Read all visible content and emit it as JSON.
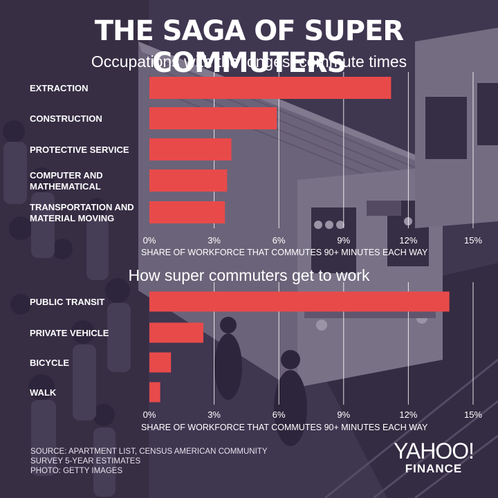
{
  "header": {
    "title": "THE SAGA OF SUPER COMMUTERS"
  },
  "colors": {
    "bar": "#e84a4a",
    "text": "#ffffff",
    "gridline": "#ffffff"
  },
  "chart_data": [
    {
      "type": "bar",
      "orientation": "horizontal",
      "title": "Occupations with the longest commute times",
      "categories": [
        "EXTRACTION",
        "CONSTRUCTION",
        "PROTECTIVE SERVICE",
        "COMPUTER AND MATHEMATICAL",
        "TRANSPORTATION AND MATERIAL MOVING"
      ],
      "category_lines": [
        [
          "EXTRACTION"
        ],
        [
          "CONSTRUCTION"
        ],
        [
          "PROTECTIVE SERVICE"
        ],
        [
          "COMPUTER AND",
          "MATHEMATICAL"
        ],
        [
          "TRANSPORTATION AND",
          "MATERIAL MOVING"
        ]
      ],
      "values": [
        11.2,
        5.9,
        3.8,
        3.6,
        3.5
      ],
      "xlabel": "SHARE OF WORKFORCE THAT COMMUTES 90+ MINUTES EACH WAY",
      "xlim": [
        0,
        15
      ],
      "ticks": [
        0,
        3,
        6,
        9,
        12,
        15
      ],
      "tick_labels": [
        "0%",
        "3%",
        "6%",
        "9%",
        "12%",
        "15%"
      ],
      "grid": true
    },
    {
      "type": "bar",
      "orientation": "horizontal",
      "title": "How super commuters get to work",
      "categories": [
        "PUBLIC TRANSIT",
        "PRIVATE VEHICLE",
        "BICYCLE",
        "WALK"
      ],
      "category_lines": [
        [
          "PUBLIC TRANSIT"
        ],
        [
          "PRIVATE VEHICLE"
        ],
        [
          "BICYCLE"
        ],
        [
          "WALK"
        ]
      ],
      "values": [
        13.9,
        2.5,
        1.0,
        0.5
      ],
      "xlabel": "SHARE OF WORKFORCE THAT COMMUTES 90+ MINUTES EACH WAY",
      "xlim": [
        0,
        15
      ],
      "ticks": [
        0,
        3,
        6,
        9,
        12,
        15
      ],
      "tick_labels": [
        "0%",
        "3%",
        "6%",
        "9%",
        "12%",
        "15%"
      ],
      "grid": true
    }
  ],
  "footer": {
    "source_line1": "SOURCE:  APARTMENT LIST, CENSUS AMERICAN COMMUNITY",
    "source_line2": "SURVEY 5-YEAR ESTIMATES",
    "photo_credit": "PHOTO: GETTY IMAGES",
    "brand_logo": "YAHOO!",
    "brand_sub": "FINANCE"
  }
}
